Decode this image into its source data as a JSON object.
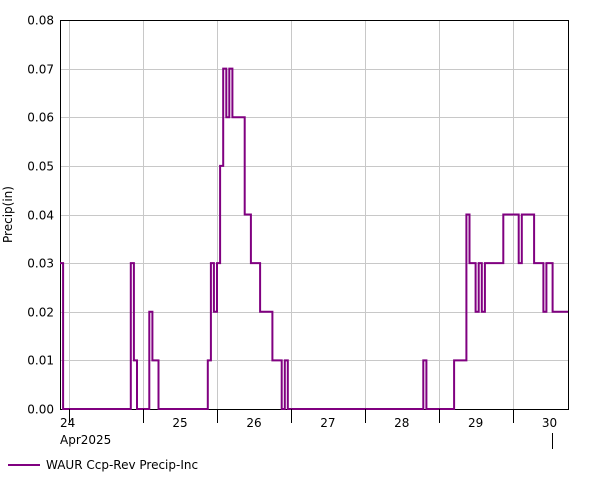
{
  "chart_data": {
    "type": "line",
    "step": true,
    "title": "",
    "ylabel": "Precip(in)",
    "xlabel": "",
    "x_month_label": "Apr2025",
    "ylim": [
      0,
      0.08
    ],
    "xlim": [
      "2025-04-23 21:00",
      "2025-04-30 18:00"
    ],
    "yticks": [
      "0.00",
      "0.01",
      "0.02",
      "0.03",
      "0.04",
      "0.05",
      "0.06",
      "0.07",
      "0.08"
    ],
    "xtick_labels": [
      "24",
      "25",
      "26",
      "27",
      "28",
      "29",
      "30"
    ],
    "grid": true,
    "legend_position": "bottom-left",
    "series": [
      {
        "name": "WAUR Ccp-Rev Precip-Inc",
        "color": "#800080",
        "points": [
          [
            "2025-04-23 21:00",
            0.03
          ],
          [
            "2025-04-23 22:00",
            0.0
          ],
          [
            "2025-04-24 20:00",
            0.03
          ],
          [
            "2025-04-24 21:00",
            0.01
          ],
          [
            "2025-04-24 22:00",
            0.0
          ],
          [
            "2025-04-25 02:00",
            0.02
          ],
          [
            "2025-04-25 03:00",
            0.01
          ],
          [
            "2025-04-25 05:00",
            0.0
          ],
          [
            "2025-04-25 21:00",
            0.01
          ],
          [
            "2025-04-25 22:00",
            0.03
          ],
          [
            "2025-04-25 23:00",
            0.02
          ],
          [
            "2025-04-26 00:00",
            0.03
          ],
          [
            "2025-04-26 01:00",
            0.05
          ],
          [
            "2025-04-26 02:00",
            0.07
          ],
          [
            "2025-04-26 03:00",
            0.06
          ],
          [
            "2025-04-26 04:00",
            0.07
          ],
          [
            "2025-04-26 05:00",
            0.06
          ],
          [
            "2025-04-26 09:00",
            0.04
          ],
          [
            "2025-04-26 11:00",
            0.03
          ],
          [
            "2025-04-26 14:00",
            0.02
          ],
          [
            "2025-04-26 18:00",
            0.01
          ],
          [
            "2025-04-26 21:00",
            0.0
          ],
          [
            "2025-04-26 22:00",
            0.01
          ],
          [
            "2025-04-26 23:00",
            0.0
          ],
          [
            "2025-04-28 19:00",
            0.01
          ],
          [
            "2025-04-28 20:00",
            0.0
          ],
          [
            "2025-04-29 05:00",
            0.01
          ],
          [
            "2025-04-29 09:00",
            0.04
          ],
          [
            "2025-04-29 10:00",
            0.03
          ],
          [
            "2025-04-29 12:00",
            0.02
          ],
          [
            "2025-04-29 13:00",
            0.03
          ],
          [
            "2025-04-29 14:00",
            0.02
          ],
          [
            "2025-04-29 15:00",
            0.03
          ],
          [
            "2025-04-29 21:00",
            0.04
          ],
          [
            "2025-04-30 02:00",
            0.03
          ],
          [
            "2025-04-30 03:00",
            0.04
          ],
          [
            "2025-04-30 07:00",
            0.03
          ],
          [
            "2025-04-30 10:00",
            0.02
          ],
          [
            "2025-04-30 11:00",
            0.03
          ],
          [
            "2025-04-30 13:00",
            0.02
          ]
        ]
      }
    ]
  }
}
